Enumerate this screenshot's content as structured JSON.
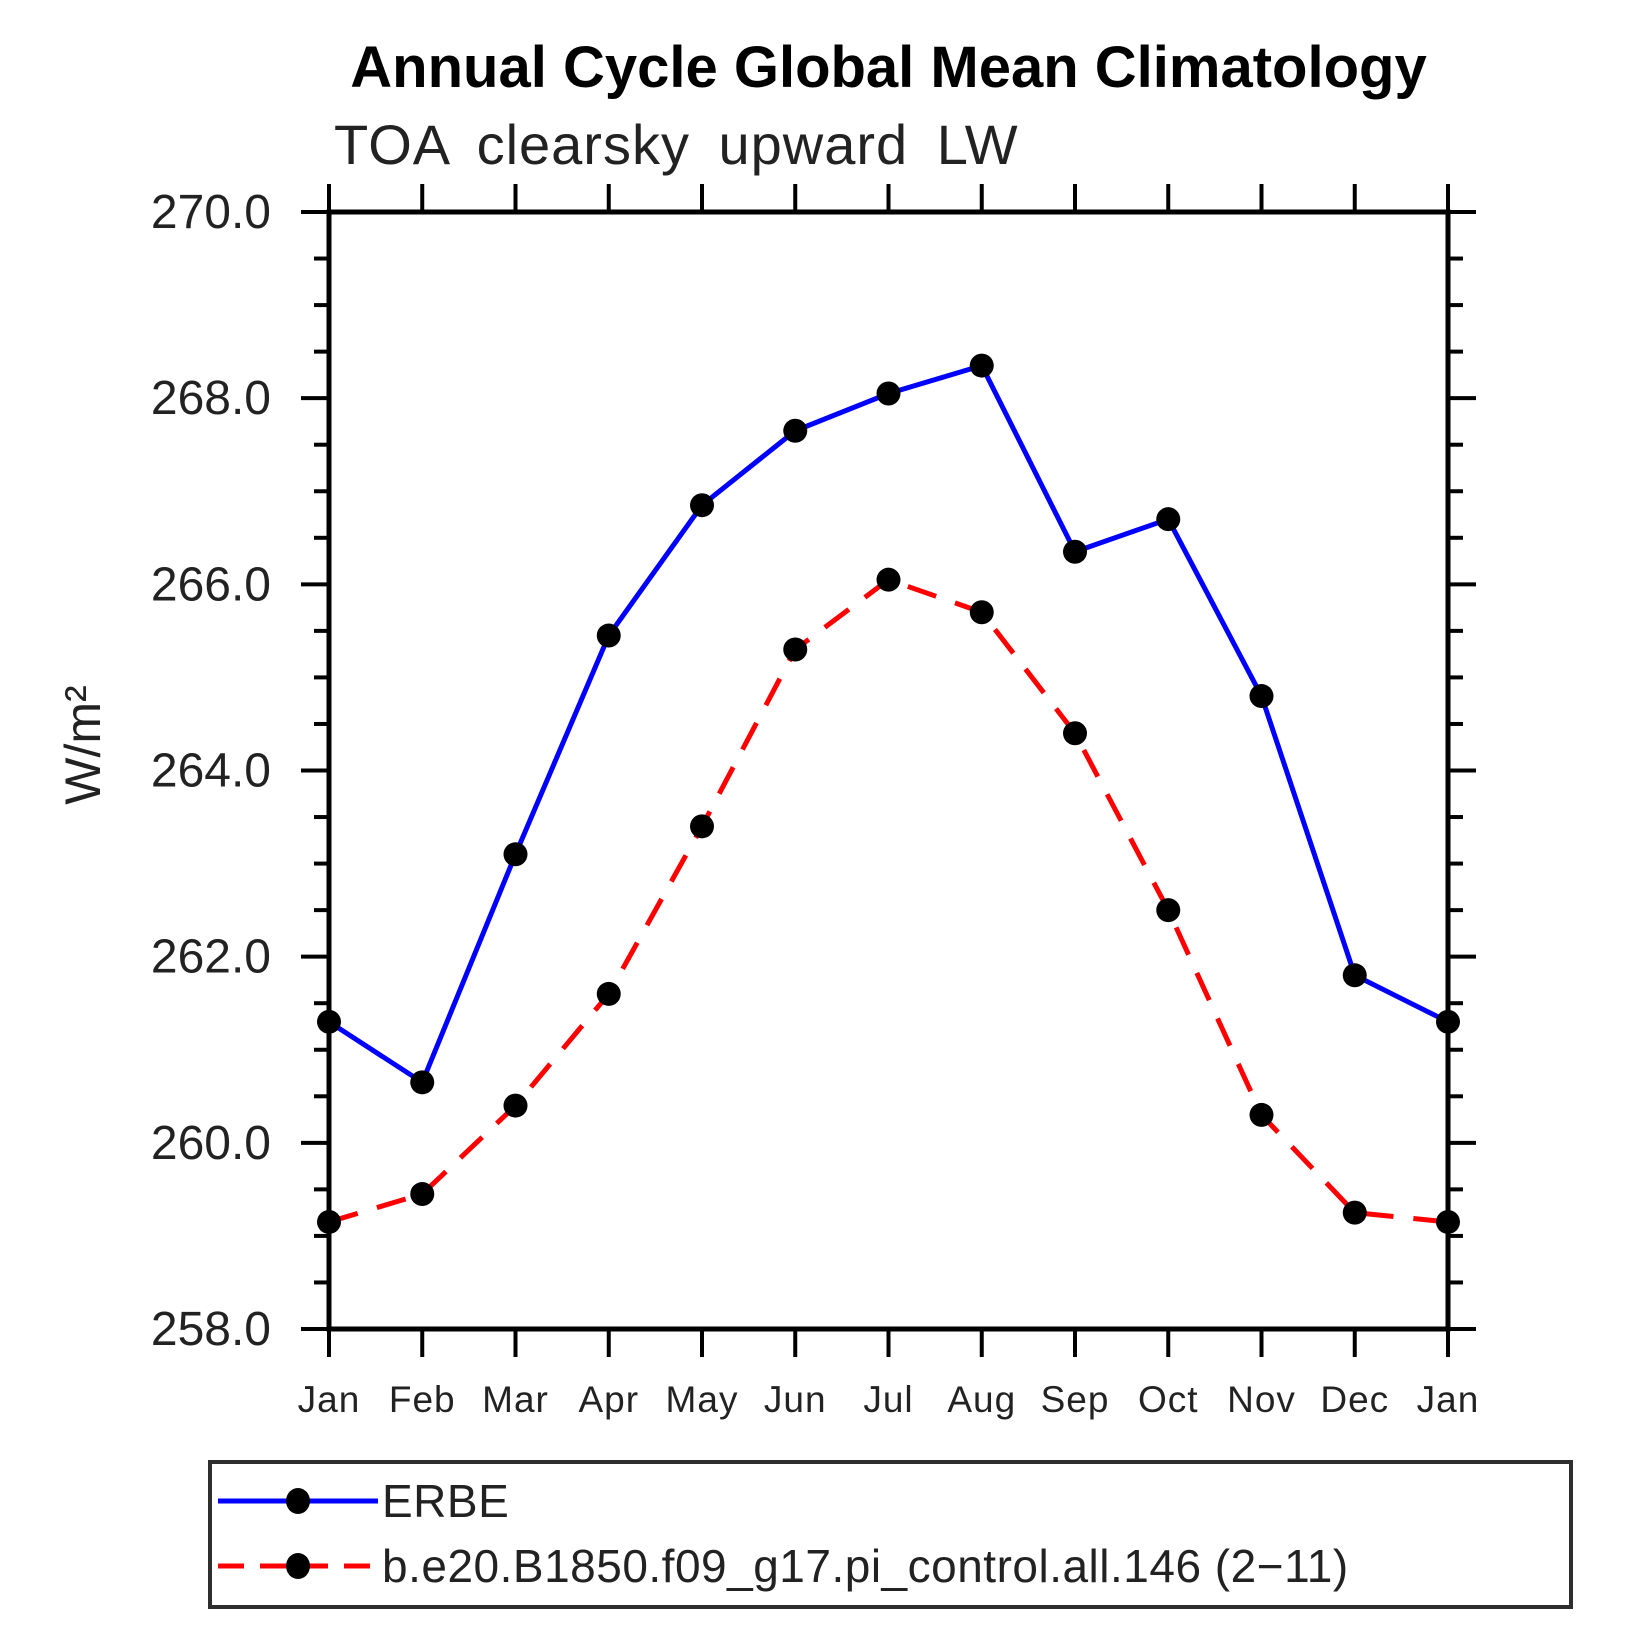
{
  "chart_data": {
    "type": "line",
    "title": "Annual Cycle Global Mean Climatology",
    "subtitle": "TOA clearsky upward LW",
    "ylabel": "W/m²",
    "categories": [
      "Jan",
      "Feb",
      "Mar",
      "Apr",
      "May",
      "Jun",
      "Jul",
      "Aug",
      "Sep",
      "Oct",
      "Nov",
      "Dec",
      "Jan"
    ],
    "ylim": [
      258.0,
      270.0
    ],
    "ytick_major_interval": 2.0,
    "ytick_minor_interval": 0.5,
    "ytick_values": [
      258,
      260,
      262,
      264,
      266,
      268,
      270
    ],
    "ytick_labels": [
      "258.0",
      "260.0",
      "262.0",
      "264.0",
      "266.0",
      "268.0",
      "270.0"
    ],
    "grid": false,
    "legend_position": "bottom-left boxed",
    "marker_color": "#000000",
    "axis_color": "#000000",
    "series": [
      {
        "name": "ERBE",
        "color": "#0000ff",
        "style": "solid",
        "marker": "circle",
        "values": [
          261.3,
          260.65,
          263.1,
          265.45,
          266.85,
          267.65,
          268.05,
          268.35,
          266.35,
          266.7,
          264.8,
          261.8,
          261.3
        ]
      },
      {
        "name": "b.e20.B1850.f09_g17.pi_control.all.146 (2−11)",
        "color": "#ff0000",
        "style": "dashed",
        "marker": "circle",
        "values": [
          259.15,
          259.45,
          260.4,
          261.6,
          263.4,
          265.3,
          266.05,
          265.7,
          264.4,
          262.5,
          260.3,
          259.25,
          259.15
        ]
      }
    ]
  }
}
